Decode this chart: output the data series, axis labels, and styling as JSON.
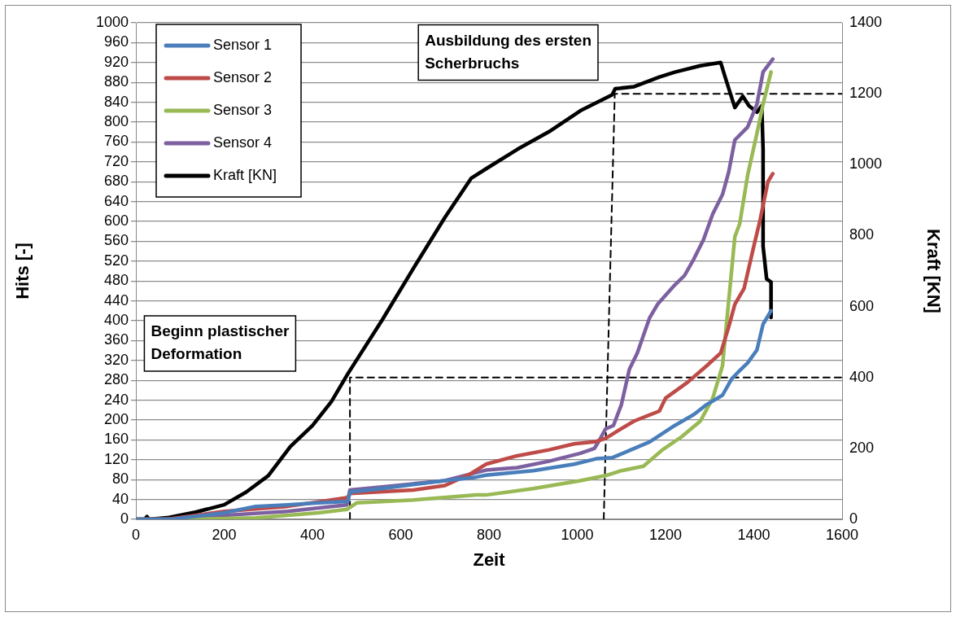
{
  "chart_data": {
    "type": "line",
    "xlabel": "Zeit",
    "ylabel": "Hits [-]",
    "y2label": "Kraft [KN]",
    "xlim": [
      0,
      1600
    ],
    "xticks": [
      0,
      200,
      400,
      600,
      800,
      1000,
      1200,
      1400,
      1600
    ],
    "ylim": [
      0,
      1000
    ],
    "yticks": [
      0,
      40,
      80,
      120,
      160,
      200,
      240,
      280,
      320,
      360,
      400,
      440,
      480,
      520,
      560,
      600,
      640,
      680,
      720,
      760,
      800,
      840,
      880,
      920,
      960,
      1000
    ],
    "y2lim": [
      0,
      1400
    ],
    "y2ticks": [
      0,
      200,
      400,
      600,
      800,
      1000,
      1200,
      1400
    ],
    "grid": "y",
    "legend": "top left",
    "line_style": "solid",
    "marker": "none",
    "annotations": [
      "Ausbildung des ersten Scherbruchs",
      "Beginn plastischer Deformation"
    ],
    "series": [
      {
        "name": "Sensor 1",
        "color": "#4a7ebb",
        "x": [
          0,
          79,
          200,
          271,
          343,
          414,
          480,
          485,
          557,
          700,
          771,
          793,
          900,
          993,
          1043,
          1079,
          1114,
          1164,
          1221,
          1264,
          1293,
          1329,
          1350,
          1364,
          1386,
          1407,
          1421,
          1439
        ],
        "values": [
          0,
          0,
          13,
          26,
          29,
          33,
          36,
          55,
          62,
          78,
          85,
          89,
          98,
          111,
          122,
          124,
          137,
          156,
          189,
          211,
          231,
          250,
          283,
          296,
          315,
          341,
          393,
          420
        ]
      },
      {
        "name": "Sensor 2",
        "color": "#be4b48",
        "x": [
          0,
          71,
          200,
          343,
          480,
          485,
          628,
          700,
          757,
          793,
          864,
          936,
          993,
          1039,
          1064,
          1093,
          1129,
          1186,
          1200,
          1250,
          1293,
          1325,
          1343,
          1357,
          1378,
          1400,
          1414,
          1432,
          1443
        ],
        "values": [
          0,
          0,
          16,
          26,
          44,
          52,
          59,
          68,
          91,
          111,
          128,
          140,
          152,
          156,
          163,
          179,
          198,
          218,
          244,
          276,
          309,
          335,
          387,
          433,
          465,
          550,
          602,
          680,
          696
        ]
      },
      {
        "name": "Sensor 3",
        "color": "#98b954",
        "x": [
          0,
          129,
          271,
          414,
          478,
          500,
          628,
          771,
          793,
          900,
          1007,
          1064,
          1100,
          1150,
          1193,
          1236,
          1279,
          1307,
          1329,
          1343,
          1357,
          1368,
          1386,
          1407,
          1421,
          1439
        ],
        "values": [
          0,
          0,
          3,
          13,
          20,
          33,
          39,
          49,
          49,
          62,
          78,
          88,
          98,
          107,
          140,
          166,
          198,
          244,
          309,
          439,
          569,
          595,
          693,
          777,
          836,
          901
        ]
      },
      {
        "name": "Sensor 4",
        "color": "#7d60a0",
        "x": [
          0,
          93,
          200,
          343,
          478,
          485,
          557,
          700,
          771,
          793,
          864,
          936,
          1007,
          1039,
          1050,
          1064,
          1082,
          1100,
          1118,
          1136,
          1164,
          1182,
          1221,
          1243,
          1264,
          1286,
          1307,
          1329,
          1343,
          1357,
          1386,
          1407,
          1421,
          1443
        ],
        "values": [
          0,
          0,
          8,
          16,
          29,
          59,
          65,
          78,
          94,
          99,
          104,
          117,
          133,
          143,
          159,
          182,
          189,
          231,
          302,
          335,
          406,
          433,
          472,
          491,
          524,
          563,
          615,
          654,
          699,
          764,
          790,
          836,
          901,
          927
        ]
      },
      {
        "name": "Kraft [KN]",
        "color": "#000000",
        "axis": "y2",
        "x": [
          0,
          20,
          25,
          30,
          75,
          135,
          200,
          250,
          300,
          350,
          400,
          443,
          480,
          557,
          628,
          700,
          760,
          793,
          864,
          936,
          1007,
          1079,
          1086,
          1129,
          1186,
          1221,
          1279,
          1325,
          1336,
          1357,
          1375,
          1389,
          1407,
          1418,
          1421,
          1421,
          1429,
          1439,
          1439
        ],
        "values": [
          0,
          0,
          8,
          0,
          5,
          20,
          41,
          77,
          123,
          205,
          264,
          332,
          410,
          560,
          706,
          851,
          962,
          988,
          1043,
          1093,
          1152,
          1197,
          1214,
          1220,
          1247,
          1261,
          1279,
          1288,
          1243,
          1161,
          1193,
          1166,
          1148,
          1166,
          1043,
          770,
          678,
          669,
          569
        ]
      },
      {
        "type": "line",
        "color": "#000000",
        "axis": "y2",
        "line_style": "dashed",
        "x": [
          485,
          485,
          1600
        ],
        "values": [
          0,
          400,
          400
        ]
      },
      {
        "type": "line",
        "color": "#000000",
        "axis": "y2",
        "line_style": "dashed",
        "x": [
          1060,
          1085,
          1600
        ],
        "values": [
          0,
          1200,
          1200
        ]
      }
    ]
  }
}
